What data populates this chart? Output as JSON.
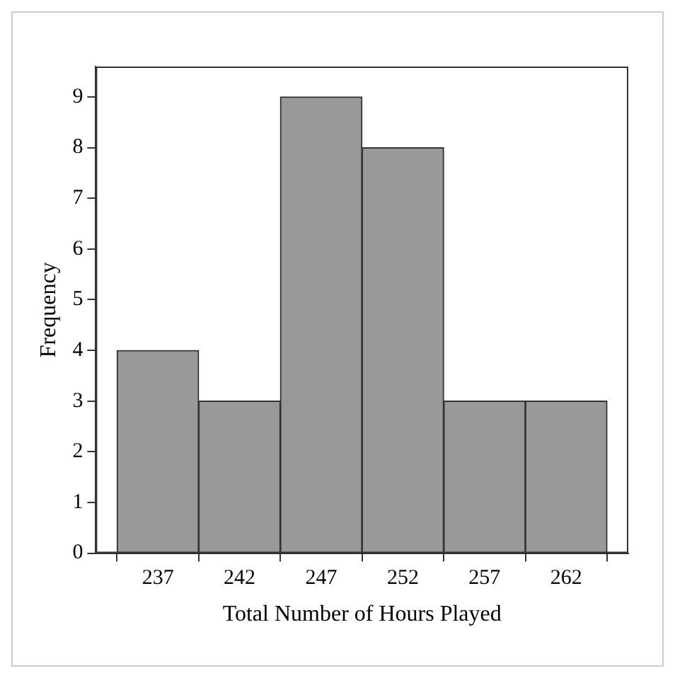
{
  "chart_data": {
    "type": "histogram",
    "xlabel": "Total Number of Hours Played",
    "ylabel": "Frequency",
    "bins": [
      234.5,
      239.5,
      244.5,
      249.5,
      254.5,
      259.5,
      264.5
    ],
    "values": [
      4,
      3,
      9,
      8,
      3,
      3
    ],
    "color": "#999999",
    "xlim": [
      233.2,
      265.8
    ],
    "xticks": [
      237,
      242,
      247,
      252,
      257,
      262
    ],
    "ylim": [
      0,
      9.6
    ],
    "yticks": [
      0,
      1,
      2,
      3,
      4,
      5,
      6,
      7,
      8,
      9
    ],
    "grid": false,
    "legend": false
  }
}
